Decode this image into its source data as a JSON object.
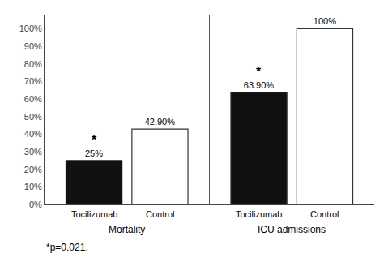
{
  "chart_data": {
    "type": "bar",
    "categories": [
      "Mortality",
      "ICU admissions"
    ],
    "series": [
      {
        "name": "Tocilizumab",
        "color": "#111111",
        "values": [
          25,
          63.9
        ],
        "value_labels": [
          "25%",
          "63.90%"
        ]
      },
      {
        "name": "Control",
        "color": "#ffffff",
        "values": [
          42.9,
          100
        ],
        "value_labels": [
          "42.90%",
          "100%"
        ]
      }
    ],
    "data_labels": true,
    "ylim": [
      0,
      108
    ],
    "yticks": [
      {
        "value": 0,
        "label": "0%"
      },
      {
        "value": 10,
        "label": "10%"
      },
      {
        "value": 20,
        "label": "20%"
      },
      {
        "value": 30,
        "label": "30%"
      },
      {
        "value": 40,
        "label": "40%"
      },
      {
        "value": 50,
        "label": "50%"
      },
      {
        "value": 60,
        "label": "60%"
      },
      {
        "value": 70,
        "label": "70%"
      },
      {
        "value": 80,
        "label": "80%"
      },
      {
        "value": 90,
        "label": "90%"
      },
      {
        "value": 100,
        "label": "100%"
      }
    ],
    "grid": false,
    "annotations": [
      {
        "text": "*",
        "category": "Mortality",
        "series": "Tocilizumab"
      },
      {
        "text": "*",
        "category": "ICU admissions",
        "series": "Tocilizumab"
      },
      {
        "text": "*p=0.021."
      }
    ]
  }
}
